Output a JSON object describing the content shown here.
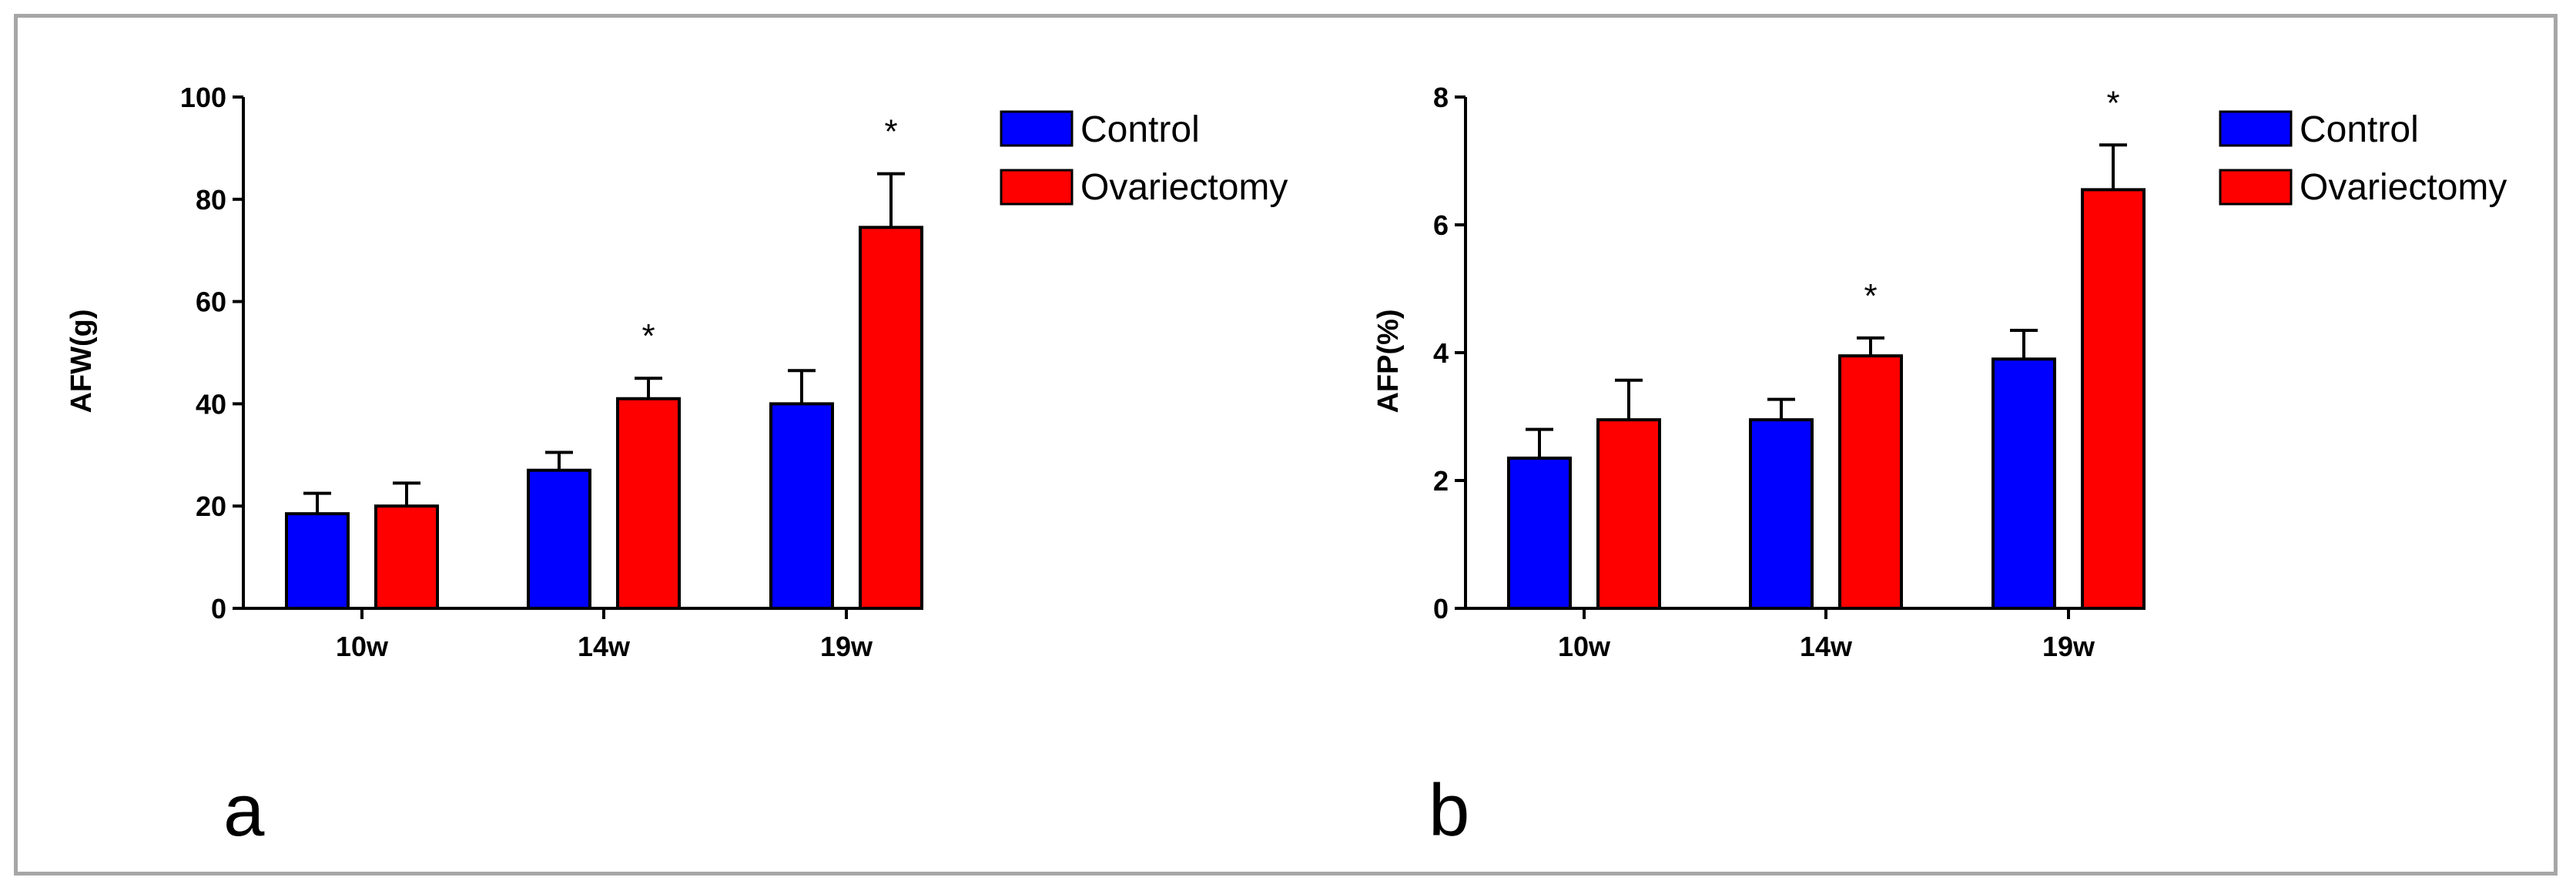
{
  "chart_data": [
    {
      "type": "bar",
      "panel_label": "a",
      "categories": [
        "10w",
        "14w",
        "19w"
      ],
      "series": [
        {
          "name": "Control",
          "color": "#0000ff",
          "values": [
            18.5,
            27,
            40
          ],
          "errors": [
            4,
            3.5,
            6.5
          ],
          "significant": [
            false,
            false,
            false
          ]
        },
        {
          "name": "Ovariectomy",
          "color": "#ff0000",
          "values": [
            20,
            41,
            74.5
          ],
          "errors": [
            4.5,
            4,
            10.5
          ],
          "significant": [
            false,
            true,
            true
          ]
        }
      ],
      "ylabel": "AFW(g)",
      "ylim": [
        0,
        100
      ],
      "yticks": [
        "0",
        "20",
        "40",
        "60",
        "80",
        "100"
      ],
      "ytick_values": [
        0,
        20,
        40,
        60,
        80,
        100
      ],
      "significance_marker": "*",
      "legend": "top-right"
    },
    {
      "type": "bar",
      "panel_label": "b",
      "categories": [
        "10w",
        "14w",
        "19w"
      ],
      "series": [
        {
          "name": "Control",
          "color": "#0000ff",
          "values": [
            2.35,
            2.95,
            3.9
          ],
          "errors": [
            0.45,
            0.32,
            0.45
          ],
          "significant": [
            false,
            false,
            false
          ]
        },
        {
          "name": "Ovariectomy",
          "color": "#ff0000",
          "values": [
            2.95,
            3.95,
            6.55
          ],
          "errors": [
            0.62,
            0.28,
            0.7
          ],
          "significant": [
            false,
            true,
            true
          ]
        }
      ],
      "ylabel": "AFP(%)",
      "ylim": [
        0,
        8
      ],
      "yticks": [
        "0",
        "2",
        "4",
        "6",
        "8"
      ],
      "ytick_values": [
        0,
        2,
        4,
        6,
        8
      ],
      "significance_marker": "*",
      "legend": "top-right"
    }
  ]
}
